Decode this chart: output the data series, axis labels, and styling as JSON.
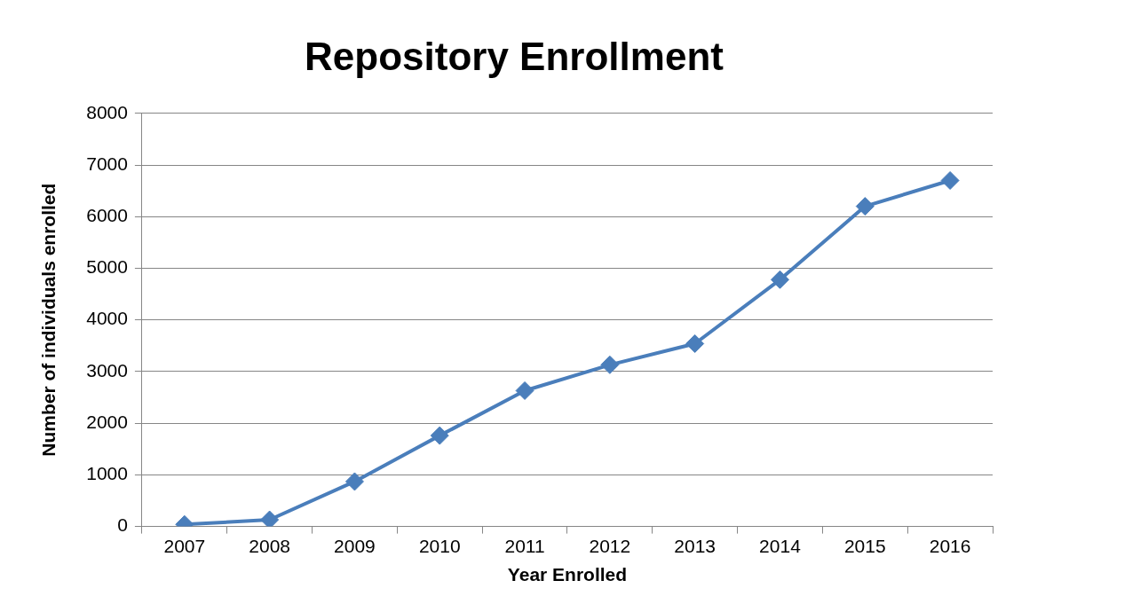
{
  "chart_data": {
    "type": "line",
    "title": "Repository Enrollment",
    "xlabel": "Year Enrolled",
    "ylabel": "Number of individuals enrolled",
    "categories": [
      "2007",
      "2008",
      "2009",
      "2010",
      "2011",
      "2012",
      "2013",
      "2014",
      "2015",
      "2016"
    ],
    "series": [
      {
        "color": "#4a7ebb",
        "values": [
          40,
          130,
          870,
          1760,
          2630,
          3130,
          3540,
          4780,
          6200,
          6700
        ]
      }
    ],
    "ylim": [
      0,
      8000
    ],
    "yticks": [
      0,
      1000,
      2000,
      3000,
      4000,
      5000,
      6000,
      7000,
      8000
    ],
    "grid": "y",
    "legend": false,
    "marker": "diamond",
    "line_style": "solid"
  }
}
